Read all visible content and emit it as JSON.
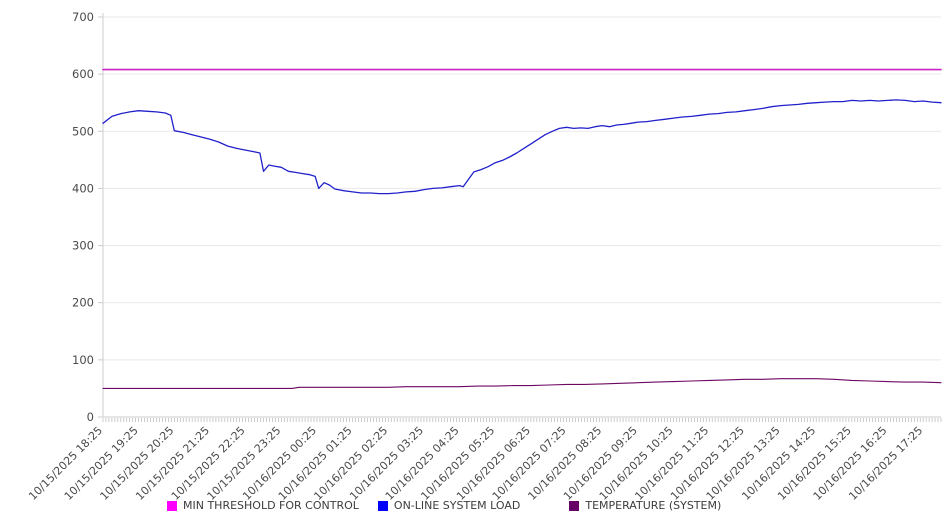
{
  "chart_data": {
    "type": "line",
    "title": "",
    "xlabel": "",
    "ylabel": "",
    "grid": "horizontal",
    "legend_position": "bottom",
    "y_axis": {
      "min": 0,
      "max": 700,
      "step": 100,
      "ticks": [
        0,
        100,
        200,
        300,
        400,
        500,
        600,
        700
      ]
    },
    "x_axis": {
      "unit": "hours-from-start",
      "range_hours": [
        0,
        23.5
      ],
      "minor_tick_minutes": 5,
      "labels": [
        "10/15/2025 18:25",
        "10/15/2025 19:25",
        "10/15/2025 20:25",
        "10/15/2025 21:25",
        "10/15/2025 22:25",
        "10/15/2025 23:25",
        "10/16/2025 00:25",
        "10/16/2025 01:25",
        "10/16/2025 02:25",
        "10/16/2025 03:25",
        "10/16/2025 04:25",
        "10/16/2025 05:25",
        "10/16/2025 06:25",
        "10/16/2025 07:25",
        "10/16/2025 08:25",
        "10/16/2025 09:25",
        "10/16/2025 10:25",
        "10/16/2025 11:25",
        "10/16/2025 12:25",
        "10/16/2025 13:25",
        "10/16/2025 14:25",
        "10/16/2025 15:25",
        "10/16/2025 16:25",
        "10/16/2025 17:25"
      ]
    },
    "series": [
      {
        "name": "MIN THRESHOLD FOR CONTROL",
        "swatch_color": "#ff00ff",
        "line_color": "#cc22cc",
        "line_width": 1.6,
        "points": [
          [
            0,
            608
          ],
          [
            23.5,
            608
          ]
        ]
      },
      {
        "name": "ON-LINE SYSTEM LOAD",
        "swatch_color": "#0000ff",
        "line_color": "#2121cc",
        "line_width": 1.3,
        "points": [
          [
            0,
            514
          ],
          [
            0.25,
            526
          ],
          [
            0.5,
            531
          ],
          [
            0.75,
            534
          ],
          [
            1,
            536
          ],
          [
            1.25,
            535
          ],
          [
            1.5,
            534
          ],
          [
            1.75,
            532
          ],
          [
            1.9,
            528
          ],
          [
            2,
            501
          ],
          [
            2.25,
            498
          ],
          [
            2.5,
            494
          ],
          [
            2.75,
            490
          ],
          [
            3,
            486
          ],
          [
            3.25,
            481
          ],
          [
            3.5,
            474
          ],
          [
            3.75,
            470
          ],
          [
            4,
            467
          ],
          [
            4.25,
            464
          ],
          [
            4.4,
            462
          ],
          [
            4.5,
            430
          ],
          [
            4.65,
            441
          ],
          [
            4.8,
            439
          ],
          [
            5,
            437
          ],
          [
            5.2,
            430
          ],
          [
            5.4,
            428
          ],
          [
            5.6,
            426
          ],
          [
            5.8,
            424
          ],
          [
            5.95,
            421
          ],
          [
            6.05,
            400
          ],
          [
            6.2,
            410
          ],
          [
            6.35,
            406
          ],
          [
            6.5,
            399
          ],
          [
            6.75,
            396
          ],
          [
            7,
            394
          ],
          [
            7.25,
            392
          ],
          [
            7.5,
            392
          ],
          [
            7.75,
            391
          ],
          [
            8,
            391
          ],
          [
            8.25,
            392
          ],
          [
            8.5,
            394
          ],
          [
            8.75,
            395
          ],
          [
            9,
            398
          ],
          [
            9.25,
            400
          ],
          [
            9.5,
            401
          ],
          [
            9.75,
            403
          ],
          [
            10,
            405
          ],
          [
            10.1,
            403
          ],
          [
            10.25,
            416
          ],
          [
            10.4,
            429
          ],
          [
            10.6,
            433
          ],
          [
            10.8,
            438
          ],
          [
            11,
            445
          ],
          [
            11.2,
            449
          ],
          [
            11.4,
            455
          ],
          [
            11.6,
            462
          ],
          [
            11.8,
            470
          ],
          [
            12,
            478
          ],
          [
            12.2,
            486
          ],
          [
            12.4,
            494
          ],
          [
            12.6,
            500
          ],
          [
            12.8,
            505
          ],
          [
            13,
            507
          ],
          [
            13.2,
            505
          ],
          [
            13.4,
            506
          ],
          [
            13.6,
            505
          ],
          [
            13.8,
            508
          ],
          [
            14,
            510
          ],
          [
            14.2,
            508
          ],
          [
            14.4,
            511
          ],
          [
            14.6,
            512
          ],
          [
            14.8,
            514
          ],
          [
            15,
            516
          ],
          [
            15.25,
            517
          ],
          [
            15.5,
            519
          ],
          [
            15.75,
            521
          ],
          [
            16,
            523
          ],
          [
            16.25,
            525
          ],
          [
            16.5,
            526
          ],
          [
            16.75,
            528
          ],
          [
            17,
            530
          ],
          [
            17.25,
            531
          ],
          [
            17.5,
            533
          ],
          [
            17.75,
            534
          ],
          [
            18,
            536
          ],
          [
            18.25,
            538
          ],
          [
            18.5,
            540
          ],
          [
            18.75,
            543
          ],
          [
            19,
            545
          ],
          [
            19.25,
            546
          ],
          [
            19.5,
            547
          ],
          [
            19.75,
            549
          ],
          [
            20,
            550
          ],
          [
            20.25,
            551
          ],
          [
            20.5,
            552
          ],
          [
            20.75,
            552
          ],
          [
            21,
            554
          ],
          [
            21.25,
            553
          ],
          [
            21.5,
            554
          ],
          [
            21.75,
            553
          ],
          [
            22,
            554
          ],
          [
            22.25,
            555
          ],
          [
            22.5,
            554
          ],
          [
            22.75,
            552
          ],
          [
            23,
            553
          ],
          [
            23.25,
            551
          ],
          [
            23.5,
            550
          ]
        ]
      },
      {
        "name": "TEMPERATURE (SYSTEM)",
        "swatch_color": "#660066",
        "line_color": "#6e0762",
        "line_width": 1.1,
        "points": [
          [
            0,
            50
          ],
          [
            1,
            50
          ],
          [
            2,
            50
          ],
          [
            3,
            50
          ],
          [
            4,
            50
          ],
          [
            5,
            50
          ],
          [
            5.3,
            50
          ],
          [
            5.5,
            52
          ],
          [
            6,
            52
          ],
          [
            6.5,
            52
          ],
          [
            7,
            52
          ],
          [
            7.5,
            52
          ],
          [
            8,
            52
          ],
          [
            8.5,
            53
          ],
          [
            9,
            53
          ],
          [
            9.5,
            53
          ],
          [
            10,
            53
          ],
          [
            10.5,
            54
          ],
          [
            11,
            54
          ],
          [
            11.5,
            55
          ],
          [
            12,
            55
          ],
          [
            12.5,
            56
          ],
          [
            13,
            57
          ],
          [
            13.5,
            57
          ],
          [
            14,
            58
          ],
          [
            14.5,
            59
          ],
          [
            15,
            60
          ],
          [
            15.5,
            61
          ],
          [
            16,
            62
          ],
          [
            16.5,
            63
          ],
          [
            17,
            64
          ],
          [
            17.5,
            65
          ],
          [
            18,
            66
          ],
          [
            18.5,
            66
          ],
          [
            19,
            67
          ],
          [
            19.5,
            67
          ],
          [
            20,
            67
          ],
          [
            20.5,
            66
          ],
          [
            21,
            64
          ],
          [
            21.5,
            63
          ],
          [
            22,
            62
          ],
          [
            22.5,
            61
          ],
          [
            23,
            61
          ],
          [
            23.5,
            60
          ]
        ]
      }
    ]
  },
  "colors": {
    "grid_line": "#e9e9e9",
    "axis_line": "#cccccc",
    "minor_tick": "#aaaaaa",
    "axis_label": "#4a4a4a"
  }
}
